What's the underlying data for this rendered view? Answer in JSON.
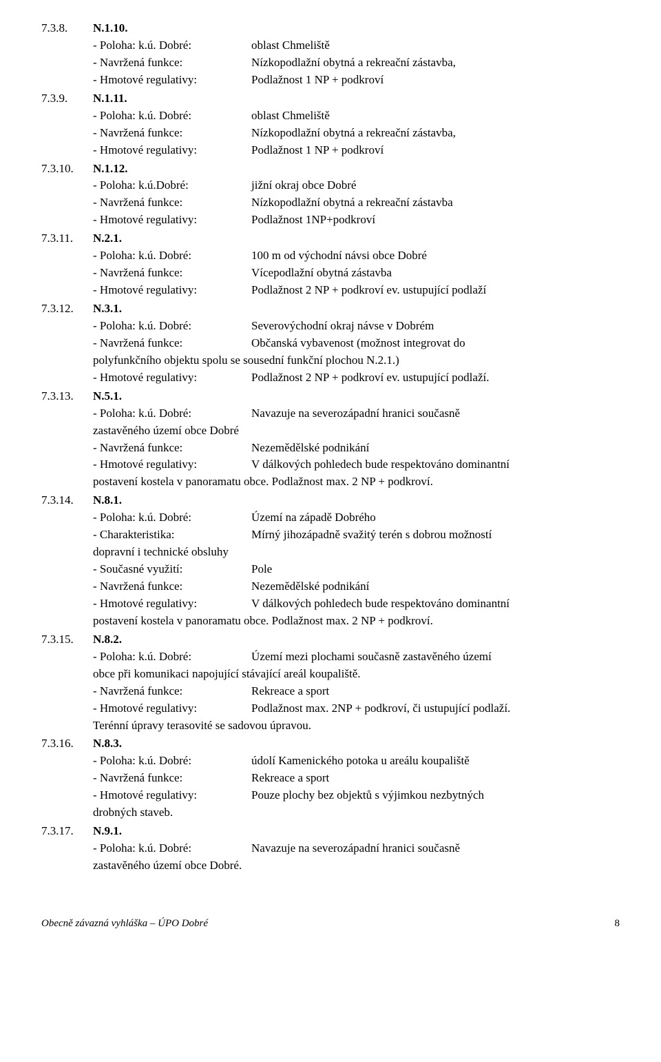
{
  "sections": [
    {
      "num": "7.3.8.",
      "code": "N.1.10.",
      "rows": [
        {
          "label": "- Poloha: k.ú. Dobré:",
          "value": "oblast Chmeliště"
        },
        {
          "label": "- Navržená funkce:",
          "value": "Nízkopodlažní obytná a rekreační zástavba,"
        },
        {
          "label": "- Hmotové regulativy:",
          "value": "Podlažnost 1 NP + podkroví"
        }
      ]
    },
    {
      "num": "7.3.9.",
      "code": "N.1.11.",
      "rows": [
        {
          "label": "- Poloha: k.ú. Dobré:",
          "value": "oblast Chmeliště"
        },
        {
          "label": "- Navržená funkce:",
          "value": "Nízkopodlažní obytná a rekreační zástavba,"
        },
        {
          "label": "- Hmotové regulativy:",
          "value": "Podlažnost 1 NP + podkroví"
        }
      ]
    },
    {
      "num": "7.3.10.",
      "code": "N.1.12.",
      "rows": [
        {
          "label": "- Poloha: k.ú.Dobré:",
          "value": "jižní okraj obce Dobré"
        },
        {
          "label": "- Navržená funkce:",
          "value": "Nízkopodlažní obytná a rekreační zástavba"
        },
        {
          "label": "- Hmotové regulativy:",
          "value": "Podlažnost 1NP+podkroví"
        }
      ]
    },
    {
      "num": "7.3.11.",
      "code": "N.2.1.",
      "rows": [
        {
          "label": "- Poloha: k.ú. Dobré:",
          "value": "100 m od východní návsi obce Dobré"
        },
        {
          "label": "- Navržená funkce:",
          "value": "Vícepodlažní obytná zástavba"
        },
        {
          "label": "- Hmotové regulativy:",
          "value": "Podlažnost 2 NP + podkroví ev. ustupující podlaží"
        }
      ]
    },
    {
      "num": "7.3.12.",
      "code": "N.3.1.",
      "rows": [
        {
          "label": "- Poloha: k.ú. Dobré:",
          "value": "Severovýchodní okraj návse v Dobrém"
        },
        {
          "label": "- Navržená funkce:",
          "value": "Občanská vybavenost (možnost integrovat do"
        }
      ],
      "continuations": [
        "polyfunkčního objektu spolu se sousední funkční plochou N.2.1.)"
      ],
      "rows2": [
        {
          "label": "- Hmotové regulativy:",
          "value": "Podlažnost 2 NP + podkroví ev. ustupující podlaží."
        }
      ]
    },
    {
      "num": "7.3.13.",
      "code": "N.5.1.",
      "rows": [
        {
          "label": "- Poloha: k.ú. Dobré:",
          "value": "Navazuje na severozápadní hranici současně"
        }
      ],
      "continuations": [
        "zastavěného území obce Dobré"
      ],
      "rows2": [
        {
          "label": "- Navržená funkce:",
          "value": "Nezemědělské podnikání"
        },
        {
          "label": "- Hmotové regulativy:",
          "value": "V dálkových pohledech bude respektováno dominantní"
        }
      ],
      "continuations2": [
        "postavení kostela v panoramatu obce. Podlažnost max. 2 NP + podkroví."
      ]
    },
    {
      "num": "7.3.14.",
      "code": "N.8.1.",
      "rows": [
        {
          "label": "- Poloha: k.ú. Dobré:",
          "value": "Území na západě Dobrého"
        },
        {
          "label": "- Charakteristika:",
          "value": "Mírný jihozápadně svažitý terén s dobrou možností"
        }
      ],
      "continuations": [
        "dopravní i technické obsluhy"
      ],
      "rows2": [
        {
          "label": "- Současné využití:",
          "value": "Pole"
        },
        {
          "label": "- Navržená funkce:",
          "value": "Nezemědělské podnikání"
        },
        {
          "label": "- Hmotové regulativy:",
          "value": "V dálkových pohledech bude respektováno dominantní"
        }
      ],
      "continuations2": [
        "postavení kostela v panoramatu obce. Podlažnost max. 2 NP + podkroví."
      ]
    },
    {
      "num": "7.3.15.",
      "code": "N.8.2.",
      "rows": [
        {
          "label": "- Poloha: k.ú. Dobré:",
          "value": "Území mezi plochami současně zastavěného území"
        }
      ],
      "continuations": [
        "obce při komunikaci napojující stávající areál koupaliště."
      ],
      "rows2": [
        {
          "label": "- Navržená funkce:",
          "value": "Rekreace a sport"
        },
        {
          "label": "- Hmotové regulativy:",
          "value": "Podlažnost max. 2NP + podkroví, či ustupující podlaží."
        }
      ],
      "continuations2": [
        "Terénní úpravy terasovité se sadovou úpravou."
      ]
    },
    {
      "num": "7.3.16.",
      "code": "N.8.3.",
      "rows": [
        {
          "label": "- Poloha: k.ú. Dobré:",
          "value": "údolí Kamenického potoka u areálu koupaliště"
        },
        {
          "label": "- Navržená funkce:",
          "value": "Rekreace a sport"
        },
        {
          "label": "- Hmotové regulativy:",
          "value": "Pouze plochy bez objektů s výjimkou nezbytných"
        }
      ],
      "continuations": [
        "drobných staveb."
      ]
    },
    {
      "num": "7.3.17.",
      "code": "N.9.1.",
      "rows": [
        {
          "label": "- Poloha: k.ú. Dobré:",
          "value": "Navazuje na severozápadní hranici současně"
        }
      ],
      "continuations": [
        "zastavěného území obce Dobré."
      ]
    }
  ],
  "footer": {
    "left": "Obecně závazná vyhláška – ÚPO Dobré",
    "page": "8"
  }
}
